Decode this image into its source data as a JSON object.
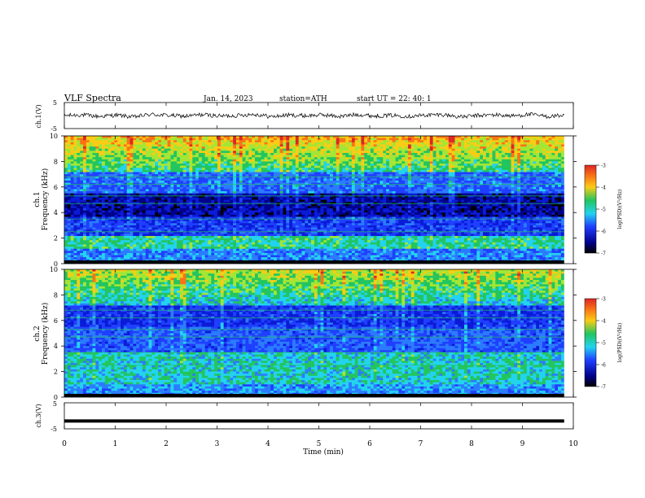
{
  "header": {
    "title": "VLF  Spectra",
    "date": "Jan. 14, 2023",
    "station": "station=ATH",
    "start": "start  UT  =   22: 40: 1"
  },
  "colors": {
    "black": "#000000",
    "darkblue": "#00008b",
    "blue": "#1f3fff",
    "cyan": "#22d3ee",
    "green": "#22c55e",
    "yellow": "#facc15",
    "orange": "#f97316",
    "red": "#dc2626"
  },
  "chart_data": [
    {
      "type": "line",
      "panel": "ch1-waveform",
      "ylabel": "ch.1(V)",
      "ylim": [
        -5,
        5
      ],
      "yticks": [
        "5",
        "-5"
      ],
      "series": [
        {
          "values": [
            0,
            0.3,
            -0.4,
            0.2,
            -0.6,
            0.5,
            0.1,
            -0.3,
            0.4,
            -0.2,
            0.0,
            0.6,
            -0.5,
            0.2,
            -0.1,
            0.3,
            -0.4,
            0.5,
            -0.2,
            0.1,
            -0.3,
            0.2,
            0.4,
            -0.6,
            0.0,
            0.3,
            -0.2,
            0.5,
            -0.4,
            0.1
          ]
        }
      ]
    },
    {
      "type": "heatmap",
      "panel": "ch1-spectrogram",
      "ylabel": "ch.1\nFrequency  (kHz)",
      "ylim": [
        0,
        10
      ],
      "yticks": [
        "0",
        "2",
        "4",
        "6",
        "8",
        "10"
      ],
      "colorbar": {
        "label": "log(PSD)(V²/Hz)",
        "ticks": [
          "-3",
          "-4",
          "-5",
          "-6",
          "-7"
        ],
        "range": [
          -7,
          -3
        ]
      }
    },
    {
      "type": "heatmap",
      "panel": "ch2-spectrogram",
      "ylabel": "ch.2\nFrequency  (kHz)",
      "ylim": [
        0,
        10
      ],
      "yticks": [
        "0",
        "2",
        "4",
        "6",
        "8",
        "10"
      ],
      "colorbar": {
        "label": "log(PSD)(V²/Hz)",
        "ticks": [
          "-3",
          "-4",
          "-5",
          "-6",
          "-7"
        ],
        "range": [
          -7,
          -3
        ]
      }
    },
    {
      "type": "line",
      "panel": "ch3-waveform",
      "ylabel": "ch.3(V)",
      "ylim": [
        -5,
        5
      ],
      "yticks": [
        "5",
        "-5"
      ],
      "series": [
        {
          "values": [
            -2.0,
            -2.0
          ]
        }
      ]
    }
  ],
  "x_axis": {
    "label": "Time  (min)",
    "ticks": [
      "0",
      "1",
      "2",
      "3",
      "4",
      "5",
      "6",
      "7",
      "8",
      "9",
      "10"
    ],
    "range": [
      0,
      10
    ],
    "data_end": 9.82
  }
}
